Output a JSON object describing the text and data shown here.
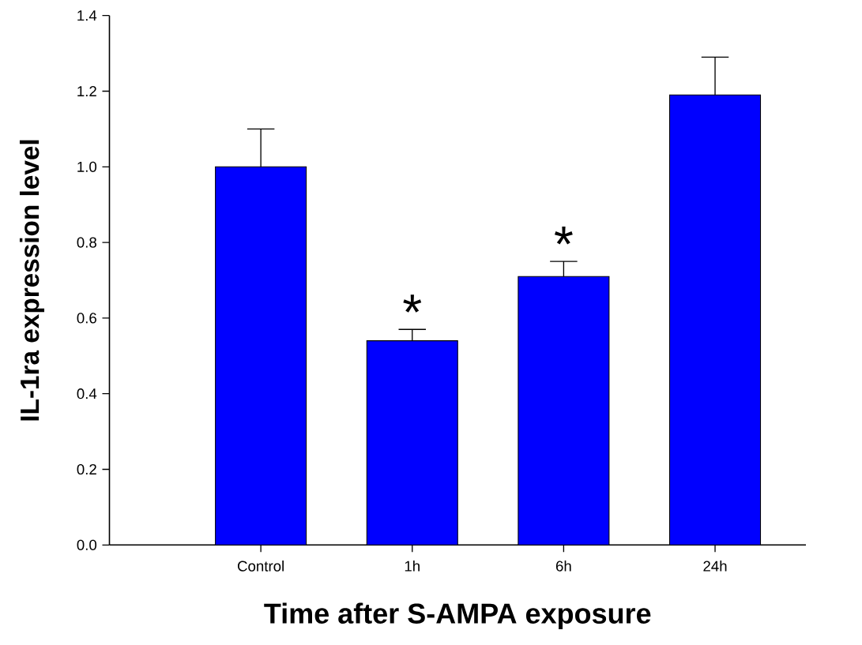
{
  "chart_data": {
    "type": "bar",
    "xlabel": "Time after S-AMPA exposure",
    "ylabel": "IL-1ra expression level",
    "categories": [
      "Control",
      "1h",
      "6h",
      "24h"
    ],
    "values": [
      1.0,
      0.54,
      0.71,
      1.19
    ],
    "errors": [
      [
        1.0,
        1.1
      ],
      [
        0.54,
        0.57
      ],
      [
        0.71,
        0.75
      ],
      [
        1.19,
        1.29
      ]
    ],
    "color": "#0000ff",
    "ylim": [
      0,
      1.4
    ],
    "yticks": [
      {
        "value": 0,
        "label": "0.0"
      },
      0.2,
      0.4,
      0.6,
      0.8,
      {
        "value": 1,
        "label": "1.0"
      },
      1.2,
      1.4
    ],
    "annotations": [
      "*",
      "*"
    ]
  }
}
